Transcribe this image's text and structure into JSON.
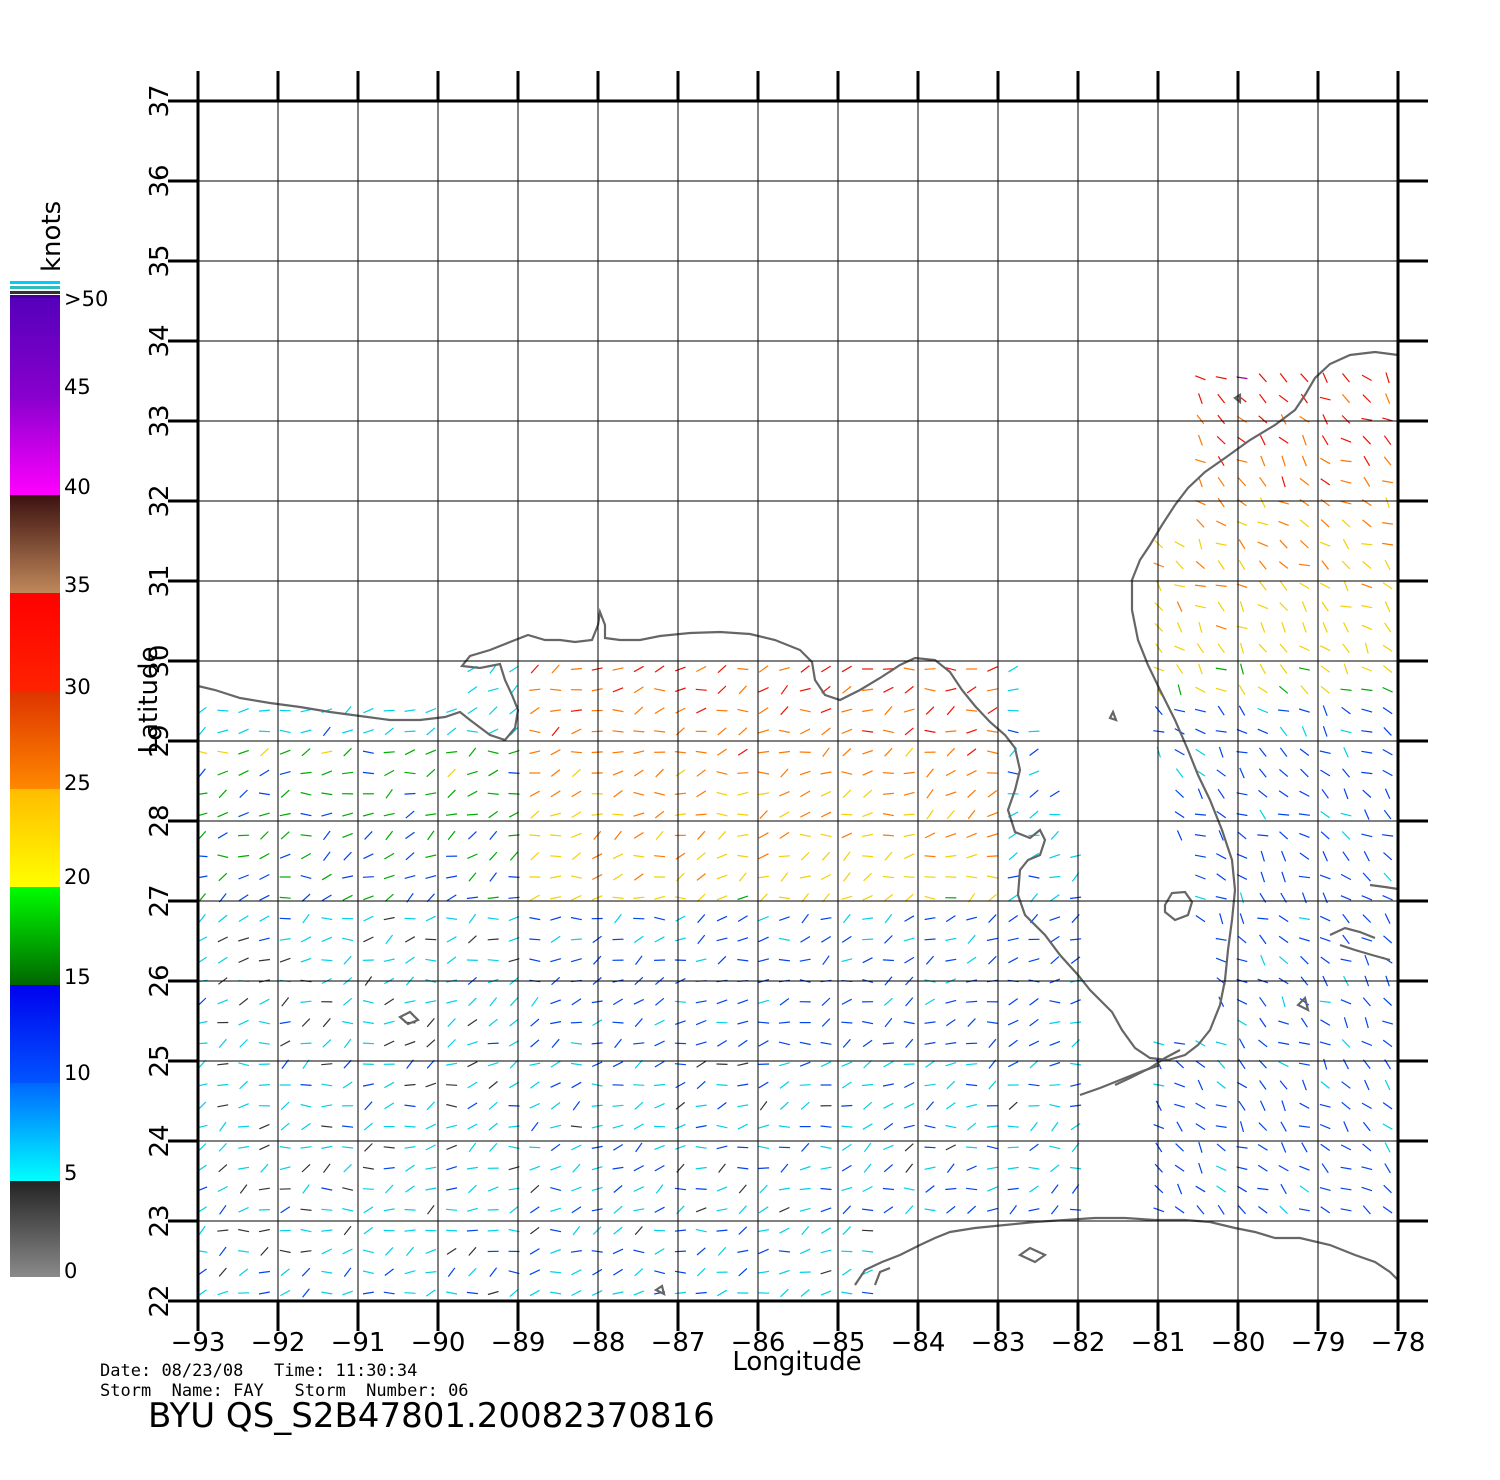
{
  "map": {
    "x_label": "Longitude",
    "y_label": "Latitude",
    "lon_ticks": [
      "−93",
      "−92",
      "−91",
      "−90",
      "−89",
      "−88",
      "−87",
      "−86",
      "−85",
      "−84",
      "−83",
      "−82",
      "−81",
      "−80",
      "−79",
      "−78"
    ],
    "lat_ticks": [
      "22",
      "23",
      "24",
      "25",
      "26",
      "27",
      "28",
      "29",
      "30",
      "31",
      "32",
      "33",
      "34",
      "35",
      "36",
      "37"
    ],
    "lon_range": [
      -93,
      -78
    ],
    "lat_range": [
      22,
      37
    ],
    "grid": true,
    "coast_color": "#666666"
  },
  "legend": {
    "unit": "knots",
    "labels": [
      "0",
      "5",
      "10",
      "15",
      "20",
      "25",
      "30",
      "35",
      "40",
      "45",
      ">50"
    ]
  },
  "info": {
    "date_label": "Date:",
    "date": "08/23/08",
    "time_label": "Time:",
    "time": "11:30:34",
    "storm_name_label": "Storm  Name:",
    "storm_name": "FAY",
    "storm_number_label": "Storm  Number:",
    "storm_number": "06",
    "product": "BYU  QS_S2B47801.20082370816"
  }
}
